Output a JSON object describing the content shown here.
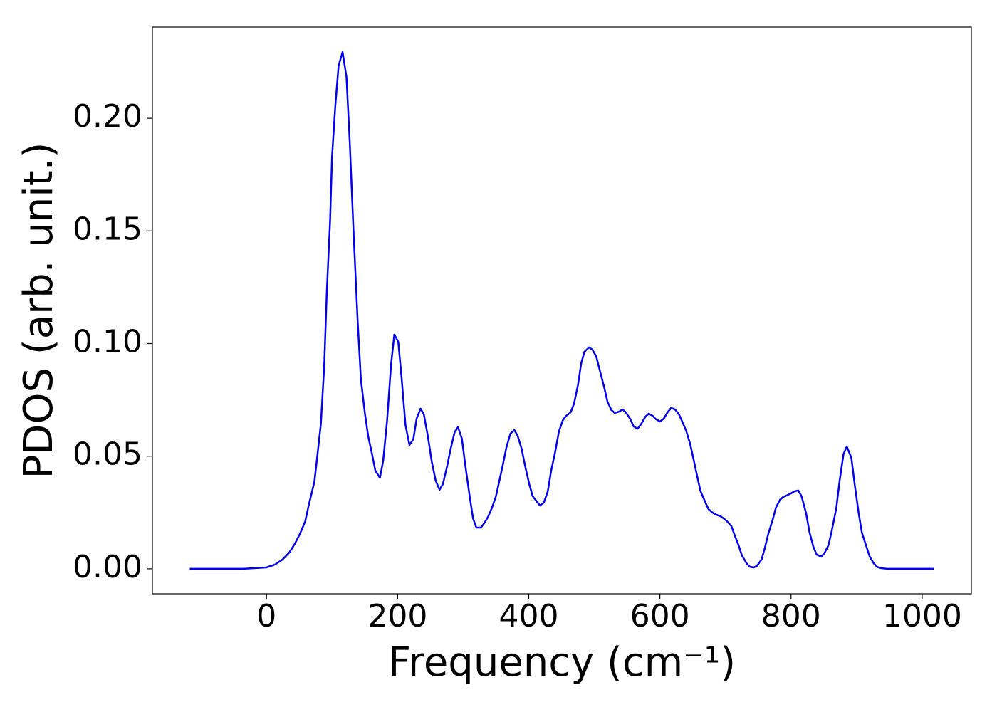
{
  "chart_data": {
    "type": "line",
    "xlabel": "Frequency (cm⁻¹)",
    "ylabel": "PDOS (arb. unit.)",
    "xlim": [
      -174,
      1075
    ],
    "ylim": [
      -0.0111,
      0.2405
    ],
    "xticks": [
      0,
      200,
      400,
      600,
      800,
      1000
    ],
    "yticks": [
      {
        "value": 0,
        "label": "0.00"
      },
      {
        "value": 0.05,
        "label": "0.05"
      },
      {
        "value": 0.1,
        "label": "0.10"
      },
      {
        "value": 0.15,
        "label": "0.15"
      },
      {
        "value": 0.2,
        "label": "0.20"
      }
    ],
    "grid": false,
    "x": [
      -117,
      -36,
      0,
      13,
      24,
      35,
      43,
      51,
      59,
      65,
      73,
      77,
      83,
      88,
      92,
      97,
      100,
      105,
      110,
      116,
      122,
      127,
      133,
      139,
      144,
      150,
      155,
      161,
      166,
      173,
      178,
      184,
      190,
      195,
      201,
      206,
      212,
      218,
      224,
      229,
      235,
      240,
      246,
      252,
      258,
      264,
      269,
      275,
      281,
      287,
      292,
      298,
      303,
      310,
      315,
      320,
      327,
      332,
      338,
      344,
      350,
      355,
      360,
      366,
      372,
      378,
      383,
      389,
      395,
      401,
      406,
      412,
      417,
      423,
      429,
      434,
      440,
      446,
      452,
      457,
      464,
      469,
      475,
      480,
      485,
      492,
      497,
      503,
      508,
      515,
      520,
      526,
      531,
      538,
      543,
      548,
      555,
      560,
      566,
      571,
      578,
      583,
      589,
      594,
      600,
      606,
      611,
      617,
      623,
      629,
      634,
      640,
      646,
      652,
      657,
      662,
      669,
      674,
      680,
      686,
      692,
      697,
      702,
      709,
      714,
      720,
      725,
      732,
      737,
      743,
      748,
      755,
      760,
      765,
      772,
      777,
      783,
      788,
      793,
      800,
      805,
      811,
      816,
      823,
      828,
      834,
      839,
      846,
      851,
      857,
      862,
      869,
      874,
      880,
      885,
      892,
      897,
      903,
      908,
      915,
      920,
      926,
      931,
      937,
      947,
      1018
    ],
    "series": [
      {
        "name": "PDOS",
        "color": "#0000ee",
        "values": [
          0,
          0,
          0.0006,
          0.0019,
          0.004,
          0.0073,
          0.011,
          0.0155,
          0.021,
          0.029,
          0.0385,
          0.0487,
          0.0645,
          0.0897,
          0.123,
          0.1545,
          0.183,
          0.2057,
          0.2234,
          0.2294,
          0.2183,
          0.1893,
          0.148,
          0.1103,
          0.084,
          0.0692,
          0.059,
          0.0509,
          0.0436,
          0.0404,
          0.048,
          0.066,
          0.0907,
          0.104,
          0.1008,
          0.085,
          0.0638,
          0.055,
          0.0575,
          0.0667,
          0.0711,
          0.0686,
          0.059,
          0.0477,
          0.0392,
          0.0351,
          0.0376,
          0.0449,
          0.0534,
          0.0607,
          0.0629,
          0.0578,
          0.0464,
          0.0319,
          0.0224,
          0.0183,
          0.0183,
          0.0202,
          0.0231,
          0.0272,
          0.0322,
          0.0389,
          0.0455,
          0.054,
          0.06,
          0.0616,
          0.0591,
          0.0534,
          0.0449,
          0.0373,
          0.0322,
          0.03,
          0.0281,
          0.0294,
          0.0344,
          0.0433,
          0.0515,
          0.061,
          0.066,
          0.0679,
          0.0695,
          0.0733,
          0.0815,
          0.0913,
          0.0964,
          0.0983,
          0.0973,
          0.0942,
          0.0885,
          0.0806,
          0.0742,
          0.0705,
          0.0692,
          0.0698,
          0.0708,
          0.0695,
          0.0664,
          0.0632,
          0.0622,
          0.0641,
          0.0676,
          0.0689,
          0.0679,
          0.0664,
          0.0654,
          0.0667,
          0.0692,
          0.0714,
          0.0708,
          0.0686,
          0.0654,
          0.0613,
          0.0556,
          0.0477,
          0.0408,
          0.0344,
          0.0297,
          0.0265,
          0.025,
          0.024,
          0.0234,
          0.0224,
          0.0212,
          0.019,
          0.0149,
          0.0104,
          0.006,
          0.0025,
          0.0009,
          0.0006,
          0.0013,
          0.0041,
          0.0092,
          0.0152,
          0.0218,
          0.0272,
          0.0306,
          0.0319,
          0.0325,
          0.0335,
          0.0344,
          0.0348,
          0.0322,
          0.0246,
          0.0164,
          0.0098,
          0.0063,
          0.0054,
          0.007,
          0.0104,
          0.0167,
          0.0269,
          0.0389,
          0.0509,
          0.0543,
          0.0493,
          0.0376,
          0.025,
          0.0161,
          0.0098,
          0.0054,
          0.0025,
          0.0009,
          0.0003,
          0,
          0
        ]
      }
    ]
  }
}
